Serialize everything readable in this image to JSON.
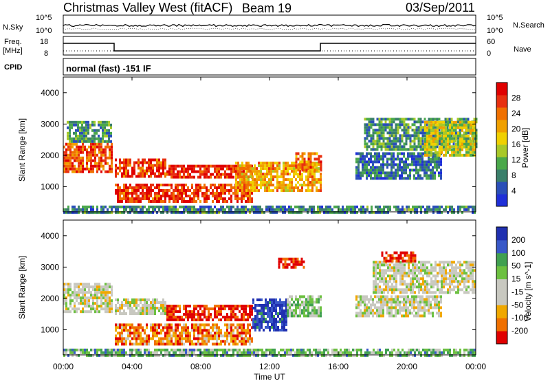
{
  "header": {
    "station": "Christmas Valley West (fitACF)",
    "beam": "Beam 19",
    "date": "03/Sep/2011"
  },
  "left_labels": {
    "nsky": "N.Sky",
    "freq": "Freq.",
    "freq_unit": "[MHz]",
    "cpid": "CPID"
  },
  "right_labels": {
    "nsearch": "N.Search",
    "nave": "Nave"
  },
  "panel_ticks": {
    "noise_left": [
      "10^5",
      "10^0"
    ],
    "noise_right": [
      "10^5",
      "10^0"
    ],
    "freq_left": [
      "18",
      "8"
    ],
    "nave_right": [
      "60",
      "0"
    ]
  },
  "cpid_text": "normal (fast) -151 IF",
  "x_ticks": [
    "00:00",
    "04:00",
    "08:00",
    "12:00",
    "16:00",
    "20:00",
    "00:00"
  ],
  "x_label": "Time UT",
  "colors": {
    "power": [
      "#1f2fd8",
      "#2a4fb8",
      "#3a7f6a",
      "#4aa84a",
      "#a8c828",
      "#f0d000",
      "#f0a000",
      "#f07000",
      "#e83010",
      "#e00000"
    ],
    "velocity": [
      "#e00000",
      "#f07000",
      "#f0a800",
      "#c8c8c0",
      "#c8c8c0",
      "#6cc040",
      "#40a050",
      "#3858c8",
      "#2030b0"
    ]
  },
  "chart_data": [
    {
      "type": "heatmap",
      "name": "power",
      "ylabel": "Slant Range [km]",
      "xlabel": "",
      "x_range_hours": [
        0,
        24
      ],
      "ylim": [
        200,
        4500
      ],
      "y_ticks": [
        1000,
        2000,
        3000,
        4000
      ],
      "colorbar": {
        "label": "Power [dB]",
        "ticks": [
          "28",
          "24",
          "20",
          "16",
          "12",
          "8",
          "4"
        ]
      },
      "regions": [
        {
          "t0": 0.0,
          "t1": 2.8,
          "r0": 1500,
          "r1": 2400,
          "level": 0.8
        },
        {
          "t0": 0.2,
          "t1": 2.8,
          "r0": 2400,
          "r1": 3100,
          "level": 0.3
        },
        {
          "t0": 3.0,
          "t1": 6.0,
          "r0": 1300,
          "r1": 1900,
          "level": 0.85
        },
        {
          "t0": 6.0,
          "t1": 11.0,
          "r0": 1300,
          "r1": 1700,
          "level": 0.9
        },
        {
          "t0": 3.0,
          "t1": 11.0,
          "r0": 500,
          "r1": 1100,
          "level": 0.85
        },
        {
          "t0": 10.0,
          "t1": 15.0,
          "r0": 900,
          "r1": 1800,
          "level": 0.65
        },
        {
          "t0": 13.5,
          "t1": 15.0,
          "r0": 1500,
          "r1": 2100,
          "level": 0.75
        },
        {
          "t0": 17.0,
          "t1": 22.0,
          "r0": 1300,
          "r1": 2100,
          "level": 0.2
        },
        {
          "t0": 17.5,
          "t1": 24.0,
          "r0": 2200,
          "r1": 3200,
          "level": 0.3
        },
        {
          "t0": 21.0,
          "t1": 24.0,
          "r0": 2000,
          "r1": 3100,
          "level": 0.5
        },
        {
          "t0": 0.0,
          "t1": 24.0,
          "r0": 200,
          "r1": 400,
          "level": 0.25
        }
      ]
    },
    {
      "type": "heatmap",
      "name": "velocity",
      "ylabel": "Slant Range [km]",
      "xlabel": "Time UT",
      "x_range_hours": [
        0,
        24
      ],
      "ylim": [
        200,
        4500
      ],
      "y_ticks": [
        1000,
        2000,
        3000,
        4000
      ],
      "colorbar": {
        "label": "Velocity [m s^-1]",
        "ticks": [
          "200",
          "100",
          "50",
          "15",
          "-15",
          "-50",
          "-100",
          "-200"
        ]
      },
      "regions": [
        {
          "t0": 0.0,
          "t1": 2.8,
          "r0": 1600,
          "r1": 2500,
          "level": 0.45
        },
        {
          "t0": 3.0,
          "t1": 6.0,
          "r0": 1500,
          "r1": 2000,
          "level": 0.45
        },
        {
          "t0": 6.0,
          "t1": 11.0,
          "r0": 1300,
          "r1": 1800,
          "level": 0.05
        },
        {
          "t0": 3.0,
          "t1": 11.0,
          "r0": 500,
          "r1": 1200,
          "level": 0.2
        },
        {
          "t0": 11.0,
          "t1": 13.0,
          "r0": 1000,
          "r1": 2000,
          "level": 0.92
        },
        {
          "t0": 13.0,
          "t1": 15.0,
          "r0": 1400,
          "r1": 2100,
          "level": 0.6
        },
        {
          "t0": 17.0,
          "t1": 22.0,
          "r0": 1400,
          "r1": 2100,
          "level": 0.45
        },
        {
          "t0": 18.0,
          "t1": 24.0,
          "r0": 2200,
          "r1": 3200,
          "level": 0.45
        },
        {
          "t0": 12.5,
          "t1": 14.0,
          "r0": 3000,
          "r1": 3300,
          "level": 0.05
        },
        {
          "t0": 18.5,
          "t1": 20.5,
          "r0": 3200,
          "r1": 3500,
          "level": 0.05
        },
        {
          "t0": 0.0,
          "t1": 24.0,
          "r0": 200,
          "r1": 400,
          "level": 0.65
        }
      ]
    }
  ]
}
